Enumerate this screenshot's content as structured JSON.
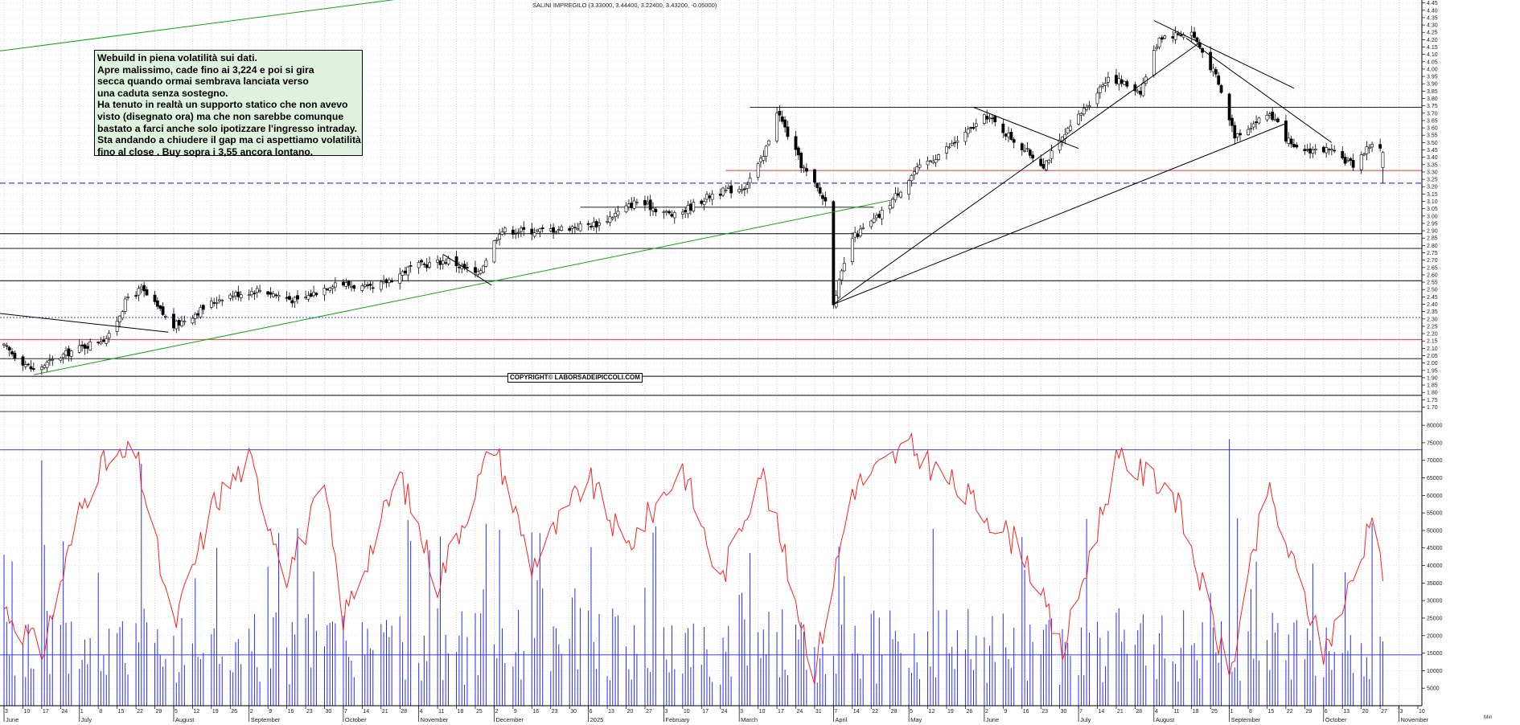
{
  "chart_data": [
    {
      "type": "candlestick",
      "title": "SALINI IMPREGILO (3.33000, 3.44400, 3.22400, 3.43200, -0.05000)",
      "y_ticks": [
        "4.45",
        "4.40",
        "4.35",
        "4.30",
        "4.25",
        "4.20",
        "4.15",
        "4.10",
        "4.05",
        "4.00",
        "3.95",
        "3.90",
        "3.85",
        "3.80",
        "3.75",
        "3.70",
        "3.65",
        "3.60",
        "3.55",
        "3.50",
        "3.45",
        "3.40",
        "3.35",
        "3.30",
        "3.25",
        "3.20",
        "3.15",
        "3.10",
        "3.05",
        "3.00",
        "2.95",
        "2.90",
        "2.85",
        "2.80",
        "2.75",
        "2.70",
        "2.65",
        "2.60",
        "2.55",
        "2.50",
        "2.45",
        "2.40",
        "2.35",
        "2.30",
        "2.25",
        "2.20",
        "2.15",
        "2.10",
        "2.05",
        "2.00",
        "1.95",
        "1.90",
        "1.85",
        "1.80",
        "1.75",
        "1.70"
      ],
      "ylim": [
        1.67,
        4.47
      ],
      "x_range": [
        "2024-06-03",
        "2025-11-10"
      ],
      "key_points": [
        {
          "date": "2024-06-03",
          "close": 2.11
        },
        {
          "date": "2024-06-14",
          "close": 1.95
        },
        {
          "date": "2024-06-28",
          "close": 2.08
        },
        {
          "date": "2024-07-12",
          "close": 2.18
        },
        {
          "date": "2024-07-19",
          "close": 2.45
        },
        {
          "date": "2024-07-24",
          "close": 2.5
        },
        {
          "date": "2024-08-05",
          "close": 2.25
        },
        {
          "date": "2024-08-23",
          "close": 2.45
        },
        {
          "date": "2024-09-06",
          "close": 2.5
        },
        {
          "date": "2024-09-20",
          "close": 2.42
        },
        {
          "date": "2024-10-04",
          "close": 2.55
        },
        {
          "date": "2024-10-18",
          "close": 2.5
        },
        {
          "date": "2024-11-01",
          "close": 2.65
        },
        {
          "date": "2024-11-15",
          "close": 2.7
        },
        {
          "date": "2024-11-26",
          "close": 2.6
        },
        {
          "date": "2024-12-04",
          "close": 2.9
        },
        {
          "date": "2024-12-20",
          "close": 2.9
        },
        {
          "date": "2025-01-10",
          "close": 2.95
        },
        {
          "date": "2025-01-24",
          "close": 3.1
        },
        {
          "date": "2025-02-07",
          "close": 3.0
        },
        {
          "date": "2025-02-21",
          "close": 3.15
        },
        {
          "date": "2025-03-05",
          "close": 3.2
        },
        {
          "date": "2025-03-12",
          "close": 3.4
        },
        {
          "date": "2025-03-17",
          "close": 3.72
        },
        {
          "date": "2025-03-26",
          "close": 3.35
        },
        {
          "date": "2025-04-04",
          "close": 3.1
        },
        {
          "date": "2025-04-07",
          "close": 2.42
        },
        {
          "date": "2025-04-14",
          "close": 2.85
        },
        {
          "date": "2025-04-24",
          "close": 3.0
        },
        {
          "date": "2025-05-07",
          "close": 3.3
        },
        {
          "date": "2025-05-22",
          "close": 3.5
        },
        {
          "date": "2025-06-03",
          "close": 3.68
        },
        {
          "date": "2025-06-17",
          "close": 3.45
        },
        {
          "date": "2025-06-24",
          "close": 3.35
        },
        {
          "date": "2025-07-04",
          "close": 3.6
        },
        {
          "date": "2025-07-18",
          "close": 3.95
        },
        {
          "date": "2025-07-30",
          "close": 3.85
        },
        {
          "date": "2025-08-06",
          "close": 4.22
        },
        {
          "date": "2025-08-18",
          "close": 4.25
        },
        {
          "date": "2025-08-27",
          "close": 3.95
        },
        {
          "date": "2025-09-03",
          "close": 3.55
        },
        {
          "date": "2025-09-16",
          "close": 3.7
        },
        {
          "date": "2025-09-25",
          "close": 3.45
        },
        {
          "date": "2025-10-07",
          "close": 3.45
        },
        {
          "date": "2025-10-17",
          "close": 3.35
        },
        {
          "date": "2025-10-24",
          "close": 3.5
        },
        {
          "date": "2025-10-28",
          "close": 3.432
        }
      ],
      "horizontal_levels": [
        {
          "value": 3.74,
          "color": "#000000"
        },
        {
          "value": 3.31,
          "color": "#e03a3a"
        },
        {
          "value": 3.224,
          "color": "#3b3bff",
          "dashed": true
        },
        {
          "value": 3.06,
          "color": "#000000"
        },
        {
          "value": 2.88,
          "color": "#000000"
        },
        {
          "value": 2.78,
          "color": "#000000"
        },
        {
          "value": 2.56,
          "color": "#000000"
        },
        {
          "value": 2.31,
          "color": "#3b3bff",
          "dotted": true
        },
        {
          "value": 2.16,
          "color": "#e03a3a"
        },
        {
          "value": 2.03,
          "color": "#000000"
        },
        {
          "value": 1.91,
          "color": "#000000"
        },
        {
          "value": 1.78,
          "color": "#000000"
        }
      ],
      "trendlines": [
        {
          "from": [
            "2024-05-31",
            2.34
          ],
          "to": [
            "2024-08-03",
            2.21
          ],
          "color": "#000000"
        },
        {
          "from": [
            "2024-06-14",
            1.92
          ],
          "to": [
            "2025-04-29",
            3.11
          ],
          "color": "#13a313"
        },
        {
          "from": [
            "2024-11-13",
            2.74
          ],
          "to": [
            "2024-12-01",
            2.53
          ],
          "color": "#000000"
        },
        {
          "from": [
            "2025-04-07",
            2.4
          ],
          "to": [
            "2025-09-22",
            3.63
          ],
          "color": "#000000"
        },
        {
          "from": [
            "2025-04-07",
            2.4
          ],
          "to": [
            "2025-08-21",
            4.18
          ],
          "color": "#000000"
        },
        {
          "from": [
            "2025-05-29",
            3.74
          ],
          "to": [
            "2025-07-07",
            3.46
          ],
          "color": "#000000"
        },
        {
          "from": [
            "2025-08-04",
            4.33
          ],
          "to": [
            "2025-09-25",
            3.87
          ],
          "color": "#000000"
        },
        {
          "from": [
            "2025-08-16",
            4.21
          ],
          "to": [
            "2025-10-09",
            3.5
          ],
          "color": "#000000"
        },
        {
          "from": [
            "2024-05-31",
            4.12
          ],
          "to": [
            "2024-12-31",
            4.63
          ],
          "color": "#13a313"
        }
      ],
      "x_day_labels": [
        "3",
        "10",
        "17",
        "24",
        "1",
        "8",
        "15",
        "22",
        "29",
        "5",
        "12",
        "19",
        "26",
        "2",
        "9",
        "16",
        "23",
        "30",
        "7",
        "14",
        "21",
        "28",
        "4",
        "11",
        "18",
        "25",
        "2",
        "9",
        "16",
        "23",
        "30",
        "6",
        "13",
        "20",
        "27",
        "3",
        "10",
        "17",
        "24",
        "3",
        "10",
        "17",
        "24",
        "31",
        "7",
        "14",
        "22",
        "28",
        "5",
        "12",
        "19",
        "26",
        "2",
        "9",
        "16",
        "23",
        "30",
        "7",
        "14",
        "21",
        "28",
        "4",
        "11",
        "18",
        "25",
        "1",
        "8",
        "15",
        "22",
        "29",
        "6",
        "13",
        "20",
        "27",
        "3",
        "10"
      ],
      "x_month_labels": [
        "June",
        "July",
        "August",
        "September",
        "October",
        "November",
        "December",
        "2025",
        "February",
        "March",
        "April",
        "May",
        "June",
        "July",
        "August",
        "September",
        "October",
        "November"
      ]
    },
    {
      "type": "bar+line",
      "y_ticks": [
        "80000",
        "75000",
        "70000",
        "65000",
        "60000",
        "55000",
        "50000",
        "45000",
        "40000",
        "35000",
        "30000",
        "25000",
        "20000",
        "15000",
        "10000",
        "5000"
      ],
      "ylim": [
        0,
        83000
      ],
      "horizontal_levels": [
        {
          "value": 73000,
          "color": "#3b3bff"
        },
        {
          "value": 14500,
          "color": "#3b3bff"
        }
      ],
      "bars_color": "#2b2bff",
      "line_color": "#ff2020",
      "line_key_points": [
        {
          "date": "2024-06-03",
          "value": 28000
        },
        {
          "date": "2024-06-17",
          "value": 15000
        },
        {
          "date": "2024-07-01",
          "value": 55000
        },
        {
          "date": "2024-07-08",
          "value": 68000
        },
        {
          "date": "2024-07-22",
          "value": 72000
        },
        {
          "date": "2024-08-05",
          "value": 22000
        },
        {
          "date": "2024-08-20",
          "value": 58000
        },
        {
          "date": "2024-09-02",
          "value": 70000
        },
        {
          "date": "2024-09-16",
          "value": 38000
        },
        {
          "date": "2024-09-30",
          "value": 62000
        },
        {
          "date": "2024-10-07",
          "value": 25000
        },
        {
          "date": "2024-10-28",
          "value": 66000
        },
        {
          "date": "2024-11-11",
          "value": 35000
        },
        {
          "date": "2024-12-02",
          "value": 75000
        },
        {
          "date": "2024-12-16",
          "value": 40000
        },
        {
          "date": "2025-01-06",
          "value": 65000
        },
        {
          "date": "2025-01-20",
          "value": 45000
        },
        {
          "date": "2025-02-10",
          "value": 68000
        },
        {
          "date": "2025-02-24",
          "value": 35000
        },
        {
          "date": "2025-03-11",
          "value": 68000
        },
        {
          "date": "2025-03-31",
          "value": 10000
        },
        {
          "date": "2025-04-14",
          "value": 62000
        },
        {
          "date": "2025-05-05",
          "value": 74000
        },
        {
          "date": "2025-05-26",
          "value": 60000
        },
        {
          "date": "2025-06-16",
          "value": 45000
        },
        {
          "date": "2025-07-01",
          "value": 15000
        },
        {
          "date": "2025-07-21",
          "value": 70000
        },
        {
          "date": "2025-08-11",
          "value": 62000
        },
        {
          "date": "2025-09-01",
          "value": 8000
        },
        {
          "date": "2025-09-15",
          "value": 62000
        },
        {
          "date": "2025-10-06",
          "value": 15000
        },
        {
          "date": "2025-10-20",
          "value": 42000
        },
        {
          "date": "2025-10-24",
          "value": 58000
        },
        {
          "date": "2025-10-28",
          "value": 38000
        }
      ]
    }
  ],
  "annotation": {
    "lines": [
      "Webuild in piena volatilità sui dati.",
      "Apre malissimo, cade fino ai 3,224 e poi si gira",
      "secca quando ormai sembrava lanciata verso",
      "una caduta senza sostegno.",
      "Ha tenuto in realtà un supporto statico che non avevo",
      "visto (disegnato ora) ma che non sarebbe comunque",
      "bastato a farci anche solo ipotizzare l'ingresso intraday.",
      "Sta andando a chiudere il gap ma ci aspettiamo volatilità",
      "fino al close . Buy sopra i 3,55 ancora lontano."
    ]
  },
  "copyright": "COPYRIGHT© LABORSADEIPICCOLI.COM",
  "series_header": "SALINI IMPREGILO (3.33000, 3.44400, 3.22400, 3.43200, -0.05000)",
  "volume_corner_unit": "Min",
  "colors": {
    "green": "#13a313",
    "red": "#e03a3a",
    "blue": "#3b3bff",
    "volume_bar": "#2b2bff",
    "volume_line": "#ff2020",
    "annotation_bg": "#dff2df"
  }
}
